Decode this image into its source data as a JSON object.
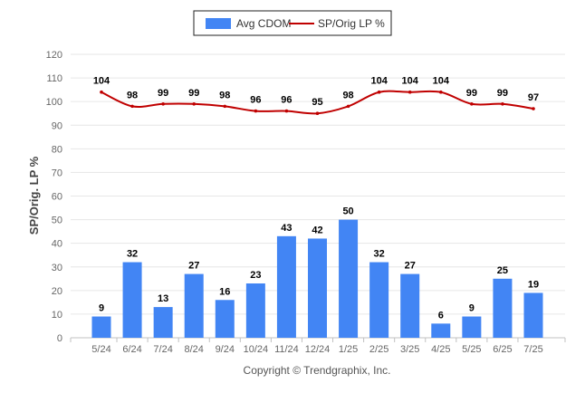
{
  "chart_data": {
    "type": "bar",
    "categories": [
      "5/24",
      "6/24",
      "7/24",
      "8/24",
      "9/24",
      "10/24",
      "11/24",
      "12/24",
      "1/25",
      "2/25",
      "3/25",
      "4/25",
      "5/25",
      "6/25",
      "7/25"
    ],
    "series": [
      {
        "name": "Avg CDOM",
        "type": "bar",
        "color": "#4285f4",
        "values": [
          9,
          32,
          13,
          27,
          16,
          23,
          43,
          42,
          50,
          32,
          27,
          6,
          9,
          25,
          19
        ]
      },
      {
        "name": "SP/Orig LP %",
        "type": "line",
        "color": "#c00000",
        "values": [
          104,
          98,
          99,
          99,
          98,
          96,
          96,
          95,
          98,
          104,
          104,
          104,
          99,
          99,
          97
        ]
      }
    ],
    "ylabel": "SP/Orig. LP %",
    "xlabel": "",
    "ylim": [
      0,
      120
    ],
    "yticks": [
      0,
      10,
      20,
      30,
      40,
      50,
      60,
      70,
      80,
      90,
      100,
      110,
      120
    ],
    "grid": true,
    "legend_position": "top-center"
  },
  "copyright": "Copyright © Trendgraphix, Inc."
}
